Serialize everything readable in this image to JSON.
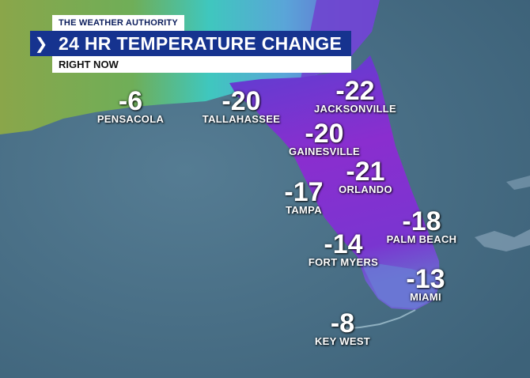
{
  "header": {
    "brand": "THE WEATHER AUTHORITY",
    "title": "24 HR TEMPERATURE CHANGE",
    "subtitle": "RIGHT NOW",
    "chevron_icon": "chevron-right-icon"
  },
  "cities": [
    {
      "name": "PENSACOLA",
      "value": "-6"
    },
    {
      "name": "TALLAHASSEE",
      "value": "-20"
    },
    {
      "name": "JACKSONVILLE",
      "value": "-22"
    },
    {
      "name": "GAINESVILLE",
      "value": "-20"
    },
    {
      "name": "ORLANDO",
      "value": "-21"
    },
    {
      "name": "TAMPA",
      "value": "-17"
    },
    {
      "name": "PALM BEACH",
      "value": "-18"
    },
    {
      "name": "FORT MYERS",
      "value": "-14"
    },
    {
      "name": "MIAMI",
      "value": "-13"
    },
    {
      "name": "KEY WEST",
      "value": "-8"
    }
  ],
  "colors": {
    "water": "#4a6f86",
    "purple": "#7b2fc8",
    "cyan": "#3fd0cf",
    "green": "#7fae47",
    "title_bar": "#16338f",
    "brand_text": "#0b1d5c"
  }
}
